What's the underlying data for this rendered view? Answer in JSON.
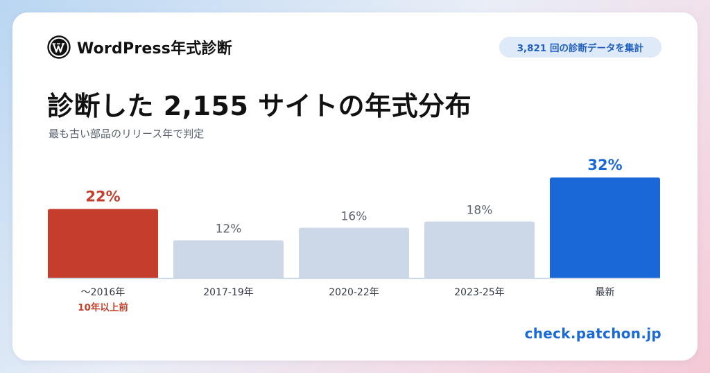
{
  "header": {
    "brand_name": "WordPress年式診断",
    "badge_text": "3,821 回の診断データを集計"
  },
  "title": "診断した 2,155 サイトの年式分布",
  "subtitle": "最も古い部品のリリース年で判定",
  "footer": {
    "url": "check.patchon.jp"
  },
  "colors": {
    "highlight_old": "#c53d2c",
    "highlight_new": "#1a68d8",
    "neutral_bar": "#ccd8e8",
    "neutral_label": "#5d6674",
    "axis": "#c6d3e3"
  },
  "chart_data": {
    "type": "bar",
    "categories": [
      "〜2016年",
      "2017-19年",
      "2020-22年",
      "2023-25年",
      "最新"
    ],
    "category_notes": [
      "10年以上前",
      "",
      "",
      "",
      ""
    ],
    "values": [
      22,
      12,
      16,
      18,
      32
    ],
    "value_labels": [
      "22%",
      "12%",
      "16%",
      "18%",
      "32%"
    ],
    "unit": "%",
    "highlight": [
      "old",
      "none",
      "none",
      "none",
      "new"
    ],
    "ylim": [
      0,
      32
    ],
    "grid": false,
    "legend": "none"
  }
}
